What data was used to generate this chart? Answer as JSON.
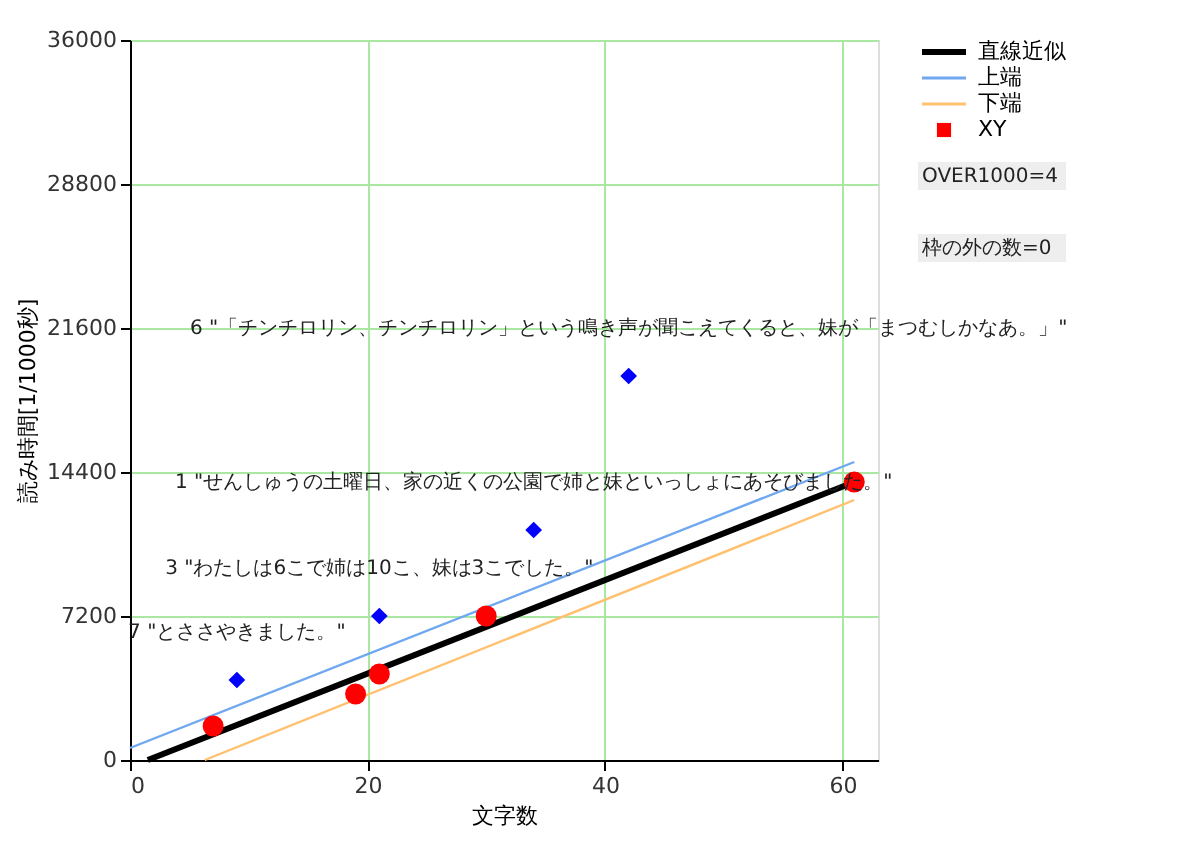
{
  "chart_data": {
    "type": "scatter",
    "xlabel": "文字数",
    "ylabel": "読み時間[1/1000秒]",
    "xlim": [
      0,
      63
    ],
    "xticks": [
      0,
      20,
      40,
      60
    ],
    "ylim": [
      0,
      36000
    ],
    "yticks": [
      0,
      7200,
      14400,
      21600,
      28800,
      36000
    ],
    "grid": true,
    "legend": "top right",
    "series": [
      {
        "name": "直線近似",
        "type": "line",
        "color": "#000000",
        "x": [
          1.5,
          61
        ],
        "values": [
          0,
          13900
        ],
        "marker": "none"
      },
      {
        "name": "上端",
        "type": "line",
        "color": "#6fa8f0",
        "x": [
          0,
          61
        ],
        "values": [
          600,
          14900
        ],
        "marker": "none"
      },
      {
        "name": "下端",
        "type": "line",
        "color": "#ffc070",
        "x": [
          6.3,
          61
        ],
        "values": [
          0,
          13000
        ],
        "marker": "none"
      },
      {
        "name": "XY",
        "color": "#ff0000",
        "marker": "circle",
        "x": [
          7,
          19,
          21,
          30,
          61
        ],
        "values": [
          1700,
          3300,
          4300,
          7200,
          13900
        ]
      },
      {
        "color": "#0000ff",
        "marker": "diamond",
        "x": [
          9,
          21,
          34,
          42
        ],
        "values": [
          4000,
          7200,
          11500,
          19200
        ]
      }
    ],
    "annotations": [
      {
        "text": "6 \"「チンチロリン、チンチロリン」という鳴き声が聞こえてくると、妹が「まつむしかなあ。」\"",
        "x": 42,
        "y": 19200
      },
      {
        "text": "1 \"せんしゅうの土曜日、家の近くの公園で姉と妹といっしょにあそびました。\"",
        "x": 34,
        "y": 11500
      },
      {
        "text": "3 \"わたしは6こで姉は10こ、妹は3こでした。\"",
        "x": 21,
        "y": 7200
      },
      {
        "text": "7 \"とささやきました。\"",
        "x": 9,
        "y": 4000
      },
      "OVER1000=4",
      "枠の外の数=0"
    ]
  }
}
